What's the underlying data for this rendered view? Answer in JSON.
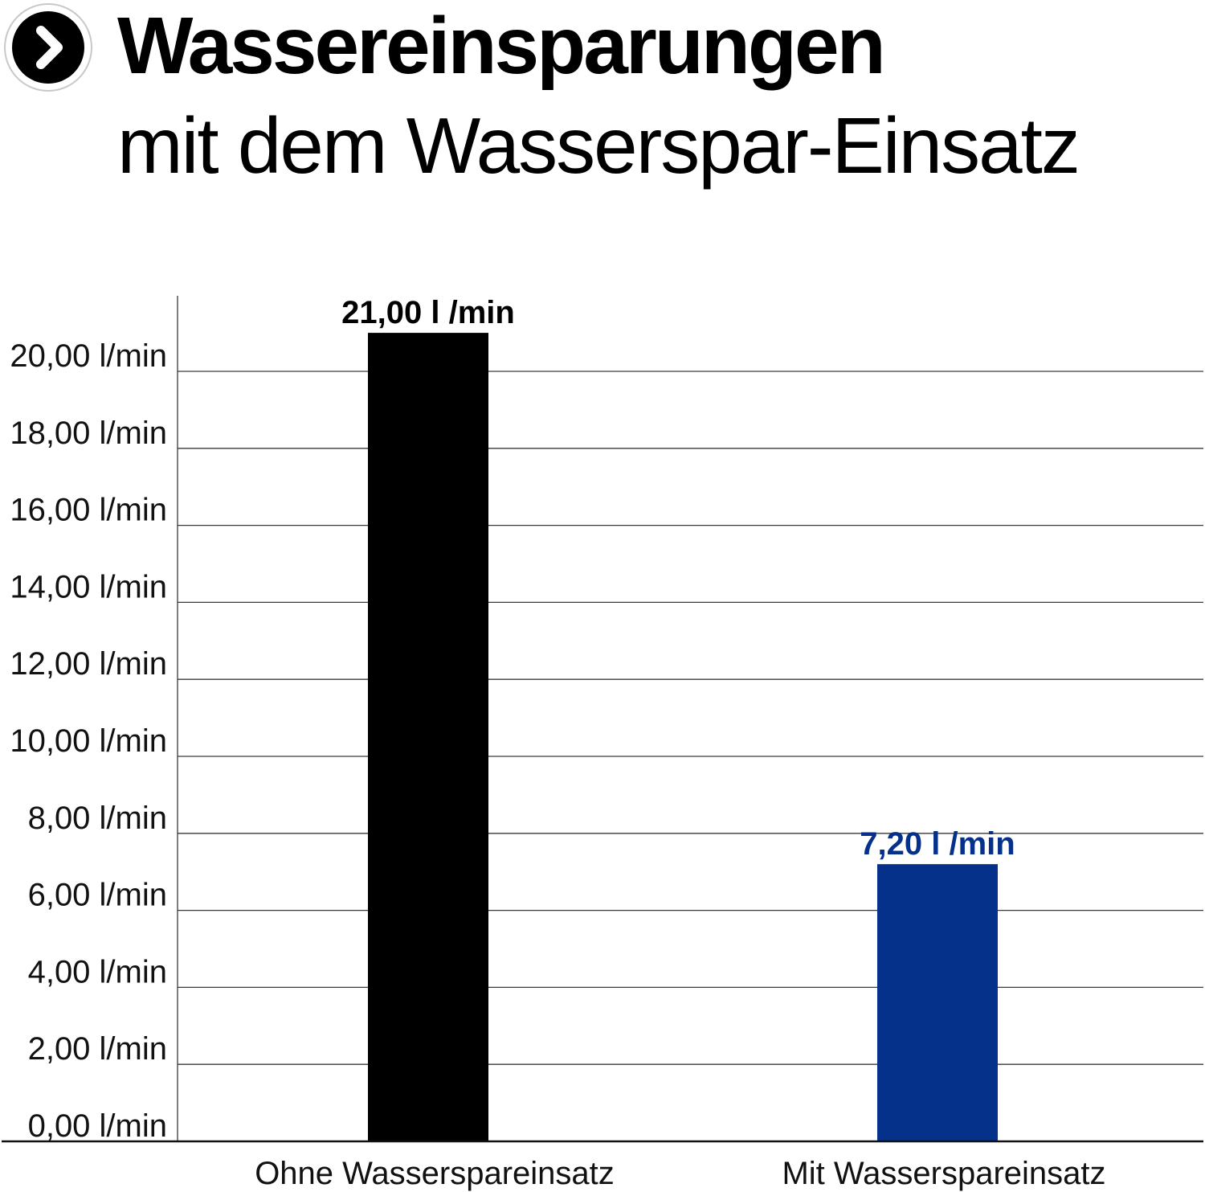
{
  "header": {
    "title": "Wassereinsparungen",
    "subtitle": "mit dem Wasserspar-Einsatz",
    "icon": "chevron-right-circle-icon"
  },
  "chart_data": {
    "type": "bar",
    "categories": [
      "Ohne Wasserspareinsatz",
      "Mit Wasserspareinsatz"
    ],
    "values": [
      21.0,
      7.2
    ],
    "value_labels": [
      "21,00 l /min",
      "7,20 l /min"
    ],
    "colors": [
      "#000000",
      "#06318a"
    ],
    "title": "Wassereinsparungen",
    "subtitle": "mit dem Wasserspar-Einsatz",
    "xlabel": "",
    "ylabel": "",
    "ylim": [
      0,
      22
    ],
    "yticks": [
      0,
      2,
      4,
      6,
      8,
      10,
      12,
      14,
      16,
      18,
      20
    ],
    "ytick_labels": [
      "0,00 l/min",
      "2,00 l/min",
      "4,00 l/min",
      "6,00 l/min",
      "8,00 l/min",
      "10,00 l/min",
      "12,00 l/min",
      "14,00 l/min",
      "16,00 l/min",
      "18,00 l/min",
      "20,00 l/min"
    ],
    "grid": true,
    "legend": "none"
  }
}
